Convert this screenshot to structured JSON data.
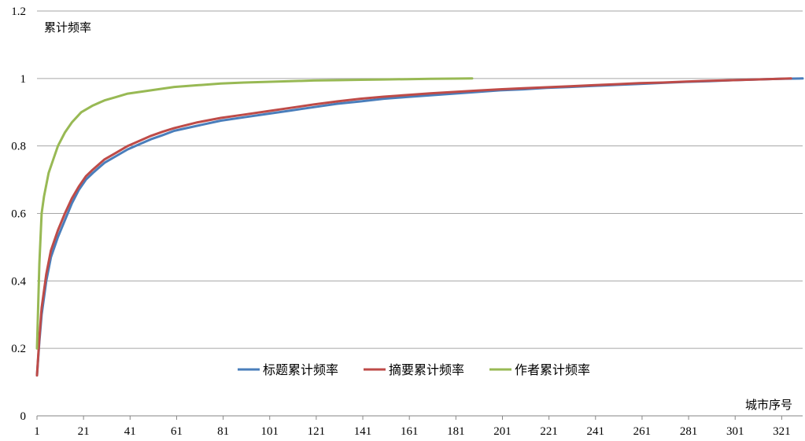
{
  "chart_data": {
    "type": "line",
    "xlabel": "城市序号",
    "ylabel": "累计频率",
    "x_range": [
      1,
      330
    ],
    "ylim": [
      0,
      1.2
    ],
    "y_ticks": [
      "0",
      "0.2",
      "0.4",
      "0.6",
      "0.8",
      "1",
      "1.2"
    ],
    "y_tick_values": [
      0,
      0.2,
      0.4,
      0.6,
      0.8,
      1.0,
      1.2
    ],
    "x_ticks": [
      "1",
      "21",
      "41",
      "61",
      "81",
      "101",
      "121",
      "141",
      "161",
      "181",
      "201",
      "221",
      "241",
      "261",
      "281",
      "301",
      "321"
    ],
    "x_tick_values": [
      1,
      21,
      41,
      61,
      81,
      101,
      121,
      141,
      161,
      181,
      201,
      221,
      241,
      261,
      281,
      301,
      321
    ],
    "grid": "horizontal",
    "legend_position": "bottom-center",
    "series": [
      {
        "name": "标题累计频率",
        "color": "#4a7ebb",
        "x": [
          1,
          2,
          3,
          5,
          7,
          10,
          13,
          16,
          19,
          22,
          25,
          30,
          35,
          40,
          45,
          50,
          55,
          60,
          70,
          80,
          90,
          100,
          110,
          120,
          130,
          140,
          150,
          160,
          170,
          180,
          190,
          200,
          210,
          220,
          230,
          240,
          250,
          260,
          270,
          280,
          290,
          300,
          310,
          320,
          330
        ],
        "y": [
          0.12,
          0.22,
          0.3,
          0.4,
          0.47,
          0.53,
          0.58,
          0.63,
          0.67,
          0.7,
          0.72,
          0.75,
          0.77,
          0.79,
          0.805,
          0.82,
          0.832,
          0.845,
          0.86,
          0.875,
          0.885,
          0.895,
          0.905,
          0.915,
          0.925,
          0.932,
          0.94,
          0.945,
          0.95,
          0.955,
          0.96,
          0.965,
          0.968,
          0.972,
          0.975,
          0.978,
          0.981,
          0.984,
          0.987,
          0.99,
          0.992,
          0.995,
          0.997,
          0.999,
          1.0
        ]
      },
      {
        "name": "摘要累计频率",
        "color": "#be4b48",
        "x": [
          1,
          2,
          3,
          5,
          7,
          10,
          13,
          16,
          19,
          22,
          25,
          30,
          35,
          40,
          45,
          50,
          55,
          60,
          70,
          80,
          90,
          100,
          110,
          120,
          130,
          140,
          150,
          160,
          170,
          180,
          190,
          200,
          210,
          220,
          230,
          240,
          250,
          260,
          270,
          280,
          290,
          300,
          310,
          320,
          325
        ],
        "y": [
          0.12,
          0.23,
          0.32,
          0.42,
          0.49,
          0.55,
          0.6,
          0.645,
          0.68,
          0.71,
          0.73,
          0.76,
          0.78,
          0.8,
          0.815,
          0.83,
          0.842,
          0.853,
          0.87,
          0.883,
          0.893,
          0.903,
          0.913,
          0.923,
          0.932,
          0.94,
          0.946,
          0.951,
          0.956,
          0.96,
          0.964,
          0.968,
          0.971,
          0.974,
          0.977,
          0.98,
          0.983,
          0.986,
          0.988,
          0.991,
          0.993,
          0.995,
          0.997,
          0.999,
          1.0
        ]
      },
      {
        "name": "作者累计频率",
        "color": "#98b954",
        "x": [
          1,
          2,
          3,
          4,
          6,
          8,
          10,
          13,
          16,
          20,
          25,
          30,
          35,
          40,
          50,
          60,
          70,
          80,
          90,
          100,
          110,
          120,
          130,
          140,
          150,
          160,
          170,
          180,
          188
        ],
        "y": [
          0.2,
          0.45,
          0.6,
          0.65,
          0.72,
          0.76,
          0.8,
          0.84,
          0.87,
          0.9,
          0.92,
          0.935,
          0.945,
          0.955,
          0.965,
          0.975,
          0.98,
          0.985,
          0.988,
          0.99,
          0.992,
          0.994,
          0.995,
          0.996,
          0.997,
          0.998,
          0.999,
          0.9995,
          1.0
        ]
      }
    ]
  }
}
